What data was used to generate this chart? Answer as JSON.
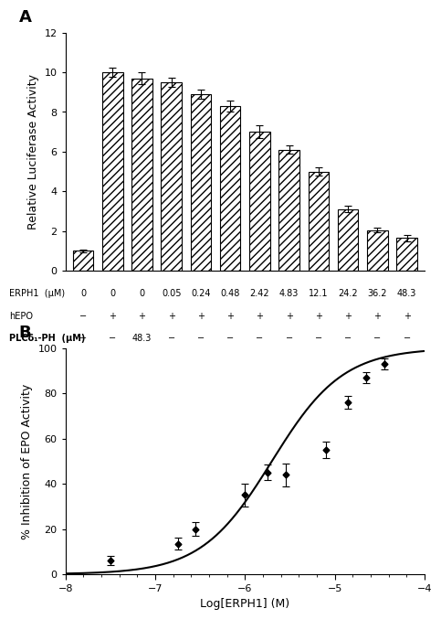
{
  "bar_values": [
    1.0,
    10.0,
    9.7,
    9.5,
    8.9,
    8.3,
    7.0,
    6.1,
    5.0,
    3.1,
    2.05,
    1.65
  ],
  "bar_errors": [
    0.07,
    0.22,
    0.28,
    0.22,
    0.22,
    0.28,
    0.32,
    0.22,
    0.22,
    0.17,
    0.12,
    0.17
  ],
  "erph1_row": [
    "0",
    "0",
    "0",
    "0.05",
    "0.24",
    "0.48",
    "2.42",
    "4.83",
    "12.1",
    "24.2",
    "36.2",
    "48.3"
  ],
  "hepo_row": [
    "−",
    "+",
    "+",
    "+",
    "+",
    "+",
    "+",
    "+",
    "+",
    "+",
    "+",
    "+"
  ],
  "plc_row": [
    "−",
    "−",
    "48.3",
    "−",
    "−",
    "−",
    "−",
    "−",
    "−",
    "−",
    "−",
    "−"
  ],
  "ylabel_A": "Relative Luciferase Activity",
  "ylim_A": [
    0,
    12
  ],
  "yticks_A": [
    0,
    2,
    4,
    6,
    8,
    10,
    12
  ],
  "scatter_x": [
    -7.5,
    -6.75,
    -6.55,
    -6.0,
    -5.75,
    -5.55,
    -5.1,
    -4.85,
    -4.65,
    -4.45
  ],
  "scatter_y": [
    6.0,
    13.5,
    20.0,
    35.0,
    45.0,
    44.0,
    55.0,
    76.0,
    87.0,
    93.0
  ],
  "scatter_yerr": [
    2.0,
    2.5,
    3.0,
    5.0,
    3.5,
    5.0,
    3.5,
    3.0,
    2.5,
    2.5
  ],
  "sigmoid_x0": -5.7,
  "sigmoid_k": 1.1,
  "ylabel_B": "% Inhibition of EPO Activity",
  "xlabel_B": "Log[ERPH1] (M)",
  "xlim_B": [
    -8,
    -4
  ],
  "ylim_B": [
    0,
    100
  ],
  "yticks_B": [
    0,
    20,
    40,
    60,
    80,
    100
  ],
  "xticks_B": [
    -8,
    -7,
    -6,
    -5,
    -4
  ],
  "hatch_pattern": "////",
  "bar_color": "white",
  "bar_edge_color": "black",
  "figure_bg": "white",
  "row_label_1": "ERPH1  (μM)",
  "row_label_2": "hEPO",
  "row_label_3": "PLCδ₁-PH  (μM)"
}
